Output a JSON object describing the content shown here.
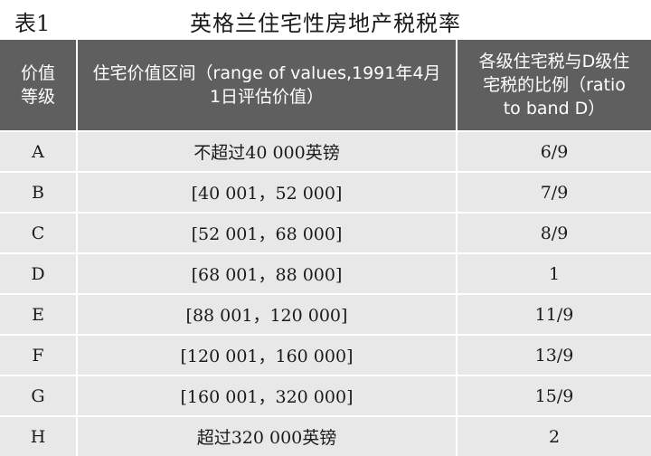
{
  "caption": {
    "label": "表1",
    "title": "英格兰住宅性房地产税税率"
  },
  "table": {
    "headers": [
      "价值等级",
      "住宅价值区间（range of values,1991年4月1日评估价值）",
      "各级住宅税与D级住宅税的比例（ratio to band D）"
    ],
    "rows": [
      [
        "A",
        "不超过40 000英镑",
        "6/9"
      ],
      [
        "B",
        "[40 001，52 000]",
        "7/9"
      ],
      [
        "C",
        "[52 001，68 000]",
        "8/9"
      ],
      [
        "D",
        "[68 001，88 000]",
        "1"
      ],
      [
        "E",
        "[88 001，120 000]",
        "11/9"
      ],
      [
        "F",
        "[120 001，160 000]",
        "13/9"
      ],
      [
        "G",
        "[160 001，320 000]",
        "15/9"
      ],
      [
        "H",
        "超过320 000英镑",
        "2"
      ]
    ]
  },
  "colors": {
    "header_bg": "#5f5f5f",
    "row_bg": "#e8e8e8",
    "text": "#1a1a1a"
  }
}
